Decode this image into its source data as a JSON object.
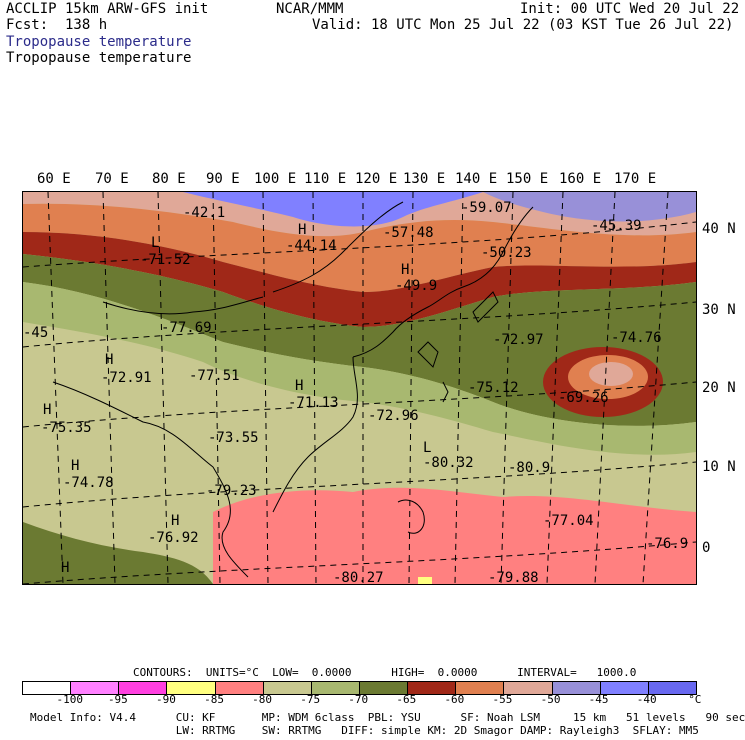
{
  "header": {
    "left_line1": "ACCLIP 15km ARW-GFS init",
    "left_line2": "Fcst:  138 h",
    "center": "NCAR/MMM",
    "init": "Init: 00 UTC Wed 20 Jul 22",
    "valid": "Valid: 18 UTC Mon 25 Jul 22 (03 KST Tue 26 Jul 22)",
    "field_title_1": "Tropopause temperature",
    "field_title_2": "Tropopause temperature"
  },
  "map": {
    "lon_labels": [
      "60 E",
      "70 E",
      "80 E",
      "90 E",
      "100 E",
      "110 E",
      "120 E",
      "130 E",
      "140 E",
      "150 E",
      "160 E",
      "170 E"
    ],
    "lat_labels": [
      "40 N",
      "30 N",
      "20 N",
      "10 N",
      "0"
    ],
    "annotations": [
      {
        "label": "-42.1"
      },
      {
        "label": "-57.48"
      },
      {
        "label": "-59.07"
      },
      {
        "label": "-45.39"
      },
      {
        "label": "H"
      },
      {
        "label": "-44.14"
      },
      {
        "label": "L"
      },
      {
        "label": "-71.52"
      },
      {
        "label": "H"
      },
      {
        "label": "-49.9"
      },
      {
        "label": "-50.23"
      },
      {
        "label": "-45"
      },
      {
        "label": "-77.69"
      },
      {
        "label": "H"
      },
      {
        "label": "-72.91"
      },
      {
        "label": "-77.51"
      },
      {
        "label": "-72.97"
      },
      {
        "label": "-74.76"
      },
      {
        "label": "H"
      },
      {
        "label": "-71.13"
      },
      {
        "label": "-72.96"
      },
      {
        "label": "-75.12"
      },
      {
        "label": "-69.26"
      },
      {
        "label": "H"
      },
      {
        "label": "-75.35"
      },
      {
        "label": "-73.55"
      },
      {
        "label": "-80.32"
      },
      {
        "label": "-80.9"
      },
      {
        "label": "H"
      },
      {
        "label": "-74.78"
      },
      {
        "label": "-79.23"
      },
      {
        "label": "-77.04"
      },
      {
        "label": "H"
      },
      {
        "label": "-76.92"
      },
      {
        "label": "-76.9"
      },
      {
        "label": "-80.27"
      },
      {
        "label": "-79.88"
      },
      {
        "label": "H"
      },
      {
        "label": "L"
      }
    ]
  },
  "contours": {
    "line": "CONTOURS:  UNITS=°C  LOW=  0.0000      HIGH=  0.0000      INTERVAL=   1000.0"
  },
  "colorbar": {
    "colors": [
      "#ffffff",
      "#ff80ff",
      "#ff40e0",
      "#ffff80",
      "#ff8080",
      "#c8c890",
      "#a8b870",
      "#6b7a32",
      "#a02818",
      "#e08050",
      "#e0a898",
      "#9890d8",
      "#8080ff",
      "#6868f0"
    ],
    "labels": [
      "-100",
      "-95",
      "-90",
      "-85",
      "-80",
      "-75",
      "-70",
      "-65",
      "-60",
      "-55",
      "-50",
      "-45",
      "-40",
      "°C"
    ]
  },
  "footer": {
    "line1": "Model Info: V4.4      CU: KF       MP: WDM 6class  PBL: YSU      SF: Noah LSM     15 km   51 levels   90 sec",
    "line2": "                      LW: RRTMG    SW: RRTMG   DIFF: simple KM: 2D Smagor DAMP: Rayleigh3  SFLAY: MM5"
  }
}
